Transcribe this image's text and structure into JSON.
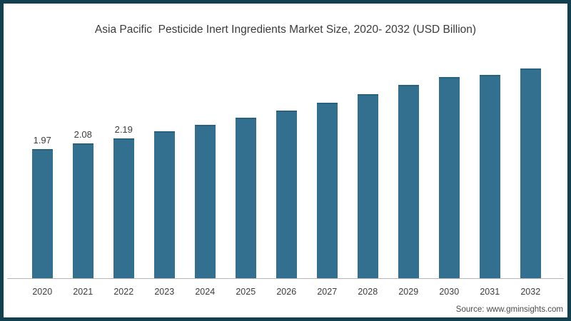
{
  "frame": {
    "border_color": "#12404F",
    "background_color": "#FFFFFF"
  },
  "chart_data": {
    "type": "bar",
    "title": "Asia Pacific  Pesticide Inert Ingredients Market Size, 2020- 2032 (USD Billion)",
    "unit": "USD Billion",
    "categories": [
      "2020",
      "2021",
      "2022",
      "2023",
      "2024",
      "2025",
      "2026",
      "2027",
      "2028",
      "2029",
      "2030",
      "2031",
      "2032"
    ],
    "values": [
      1.97,
      2.08,
      2.19,
      2.33,
      2.46,
      2.59,
      2.74,
      2.9,
      3.07,
      3.25,
      3.41,
      3.45,
      3.58
    ],
    "data_labels": [
      "1.97",
      "2.08",
      "2.19",
      null,
      null,
      null,
      null,
      null,
      null,
      null,
      null,
      null,
      null
    ],
    "bar_color": "#336F8E",
    "bar_edge_color": "#27637F",
    "axis_line_color": "#B5B5B5",
    "grid": "off",
    "legend": "none",
    "y_axis_visible": false,
    "x_axis_labels_visible": true,
    "note": "Only the 2020-2022 bars carry printed value labels; remaining values estimated from bar heights (baseline is not zero-scaled)."
  },
  "source": {
    "text": "Source: www.gminsights.com"
  }
}
